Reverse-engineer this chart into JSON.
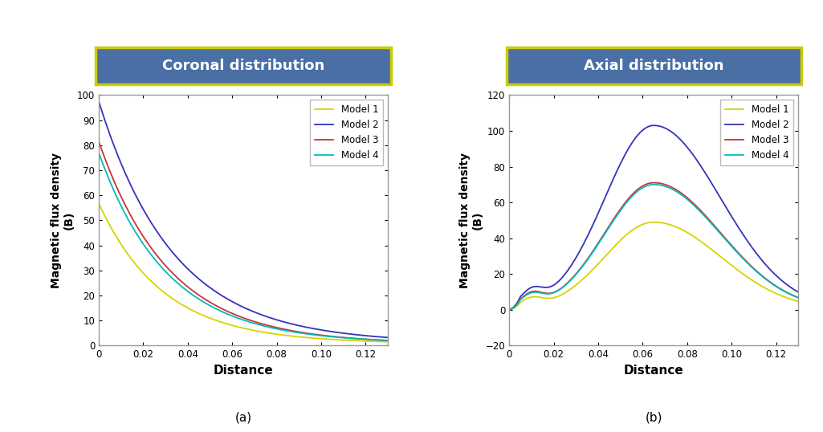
{
  "title_a": "Coronal distribution",
  "title_b": "Axial distribution",
  "xlabel": "Distance",
  "ylabel_line1": "Magnetic flux density",
  "ylabel_line2": "(B)",
  "label_a": "(a)",
  "label_b": "(b)",
  "legend_labels": [
    "Model 1",
    "Model 2",
    "Model 3",
    "Model 4"
  ],
  "colors": [
    "#d4d400",
    "#3333bb",
    "#cc3333",
    "#00bbbb"
  ],
  "title_bg": "#4a6fa5",
  "title_border": "#cccc00",
  "plot_bg": "#ffffff",
  "fig_bg": "#ffffff",
  "coronal_ylim": [
    0,
    100
  ],
  "coronal_yticks": [
    0,
    10,
    20,
    30,
    40,
    50,
    60,
    70,
    80,
    90,
    100
  ],
  "coronal_xlim": [
    0,
    0.13
  ],
  "coronal_xticks": [
    0,
    0.02,
    0.04,
    0.06,
    0.08,
    0.1,
    0.12
  ],
  "axial_ylim": [
    -20,
    120
  ],
  "axial_yticks": [
    -20,
    0,
    20,
    40,
    60,
    80,
    100,
    120
  ],
  "axial_xlim": [
    0,
    0.13
  ],
  "axial_xticks": [
    0,
    0.02,
    0.04,
    0.06,
    0.08,
    0.1,
    0.12
  ]
}
